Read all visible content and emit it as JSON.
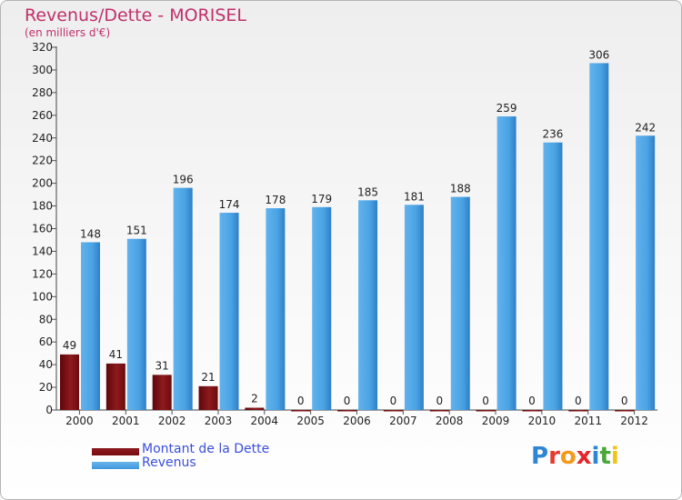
{
  "header": {
    "title": "Revenus/Dette - MORISEL",
    "subtitle": "(en milliers d'€)"
  },
  "colors": {
    "title": "#c0306a",
    "debt": "#7a0c10",
    "revenue": "#3d97dd",
    "legend_text": "#3a4fdc"
  },
  "chart_data": {
    "type": "bar",
    "title": "Revenus/Dette - MORISEL",
    "subtitle": "(en milliers d'€)",
    "xlabel": "",
    "ylabel": "",
    "ylim": [
      0,
      320
    ],
    "ytick_step": 20,
    "grid": false,
    "legend_position": "bottom-left",
    "categories": [
      "2000",
      "2001",
      "2002",
      "2003",
      "2004",
      "2005",
      "2006",
      "2007",
      "2008",
      "2009",
      "2010",
      "2011",
      "2012"
    ],
    "series": [
      {
        "name": "Montant de la Dette",
        "color": "#7a0c10",
        "values": [
          49,
          41,
          31,
          21,
          2,
          0,
          0,
          0,
          0,
          0,
          0,
          0,
          0
        ]
      },
      {
        "name": "Revenus",
        "color": "#3d97dd",
        "values": [
          148,
          151,
          196,
          174,
          178,
          179,
          185,
          181,
          188,
          259,
          236,
          306,
          242
        ]
      }
    ]
  },
  "legend": [
    {
      "label": "Montant de la Dette",
      "color": "#7a0c10"
    },
    {
      "label": "Revenus",
      "color": "#3d97dd"
    }
  ],
  "logo": {
    "text": "Proxiti",
    "letters": [
      {
        "ch": "P",
        "color": "#2f86d4"
      },
      {
        "ch": "r",
        "color": "#e53b2d"
      },
      {
        "ch": "o",
        "color": "#f39a1b"
      },
      {
        "ch": "x",
        "color": "#e8242a"
      },
      {
        "ch": "i",
        "color": "#2f86d4"
      },
      {
        "ch": "t",
        "color": "#4aa83a"
      },
      {
        "ch": "i",
        "color": "#f3c416"
      }
    ]
  }
}
